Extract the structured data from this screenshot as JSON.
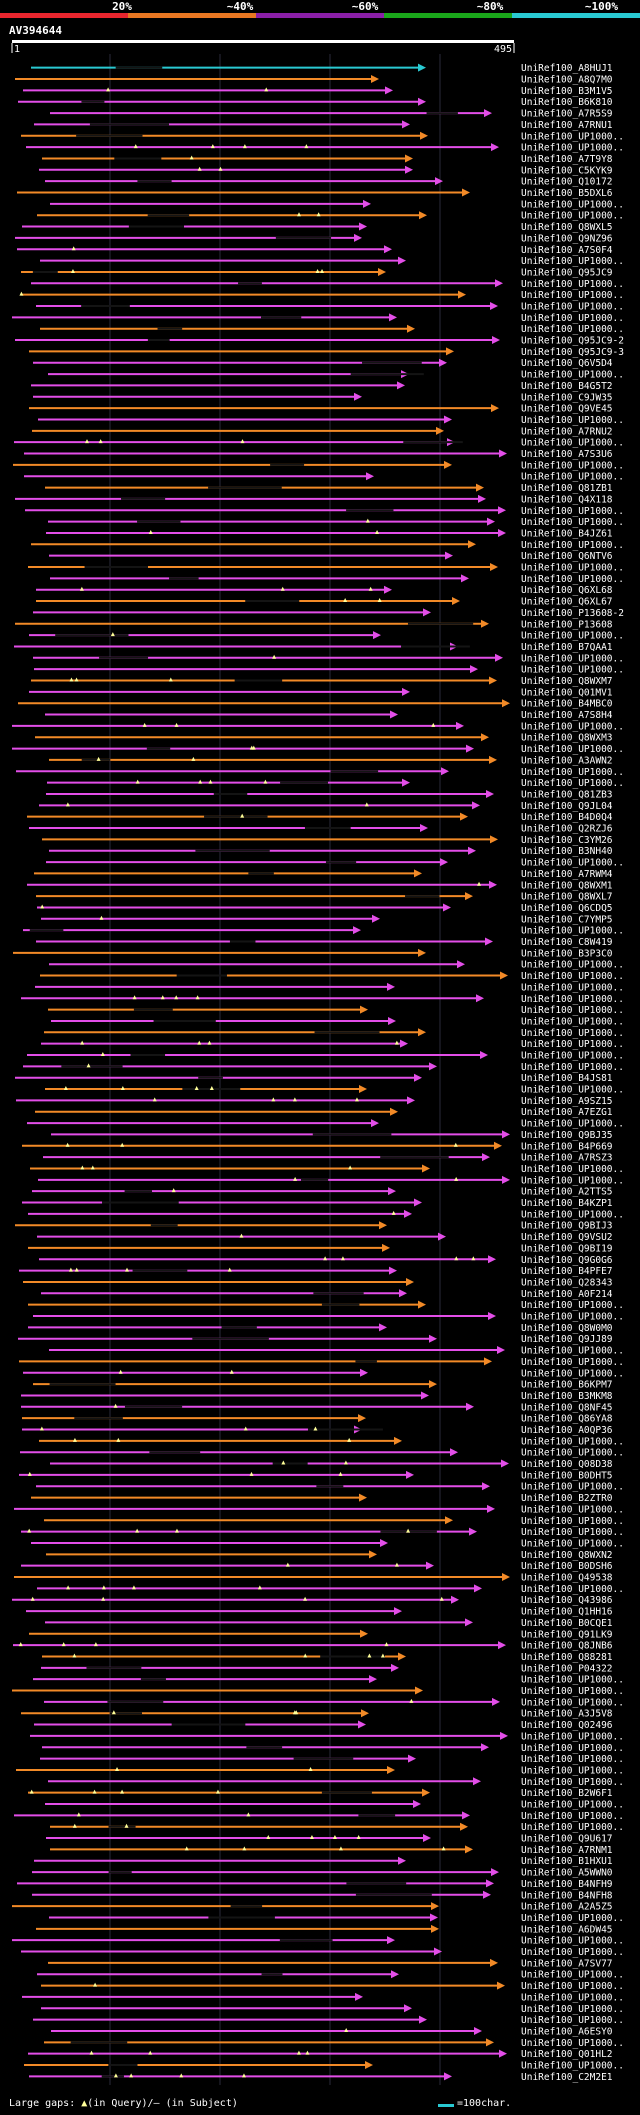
{
  "legend": {
    "ticks": [
      "20%",
      "~40%",
      "~60%",
      "~80%",
      "~100%"
    ],
    "colors": [
      "#e8262e",
      "#e87722",
      "#8b1fa8",
      "#1aa61a",
      "#29c9d2"
    ]
  },
  "query": {
    "name": "AV394644",
    "start": "1",
    "end": "495"
  },
  "footer": {
    "gaps_text": "Large gaps:",
    "in_query": "(in Query)",
    "in_subject": "(in Subject)",
    "scale_text": "=100char."
  },
  "palette": {
    "magenta": "#e34ee8",
    "orange": "#f28a27",
    "cyan": "#29c9d2",
    "marker": "#ffff99",
    "label": "#ffffff"
  },
  "hits": [
    "UniRef100_A8HUJ1",
    "UniRef100_A8Q7M0",
    "UniRef100_B3M1V5",
    "UniRef100_B6K810",
    "UniRef100_A7R5S9",
    "UniRef100_A7RNU1",
    "UniRef100_UP1000..",
    "UniRef100_UP1000..",
    "UniRef100_A7T9Y8",
    "UniRef100_C5KYK9",
    "UniRef100_Q10172",
    "UniRef100_B5DXL6",
    "UniRef100_UP1000..",
    "UniRef100_UP1000..",
    "UniRef100_Q8WXL5",
    "UniRef100_Q9NZ96",
    "UniRef100_A7S0F4",
    "UniRef100_UP1000..",
    "UniRef100_Q95JC9",
    "UniRef100_UP1000..",
    "UniRef100_UP1000..",
    "UniRef100_UP1000..",
    "UniRef100_UP1000..",
    "UniRef100_UP1000..",
    "UniRef100_Q95JC9-2",
    "UniRef100_Q95JC9-3",
    "UniRef100_Q6V5D4",
    "UniRef100_UP1000..",
    "UniRef100_B4G5T2",
    "UniRef100_C9JW35",
    "UniRef100_Q9VE45",
    "UniRef100_UP1000..",
    "UniRef100_A7RNU2",
    "UniRef100_UP1000..",
    "UniRef100_A7S3U6",
    "UniRef100_UP1000..",
    "UniRef100_UP1000..",
    "UniRef100_Q81ZB1",
    "UniRef100_Q4X118",
    "UniRef100_UP1000..",
    "UniRef100_UP1000..",
    "UniRef100_B4JZ61",
    "UniRef100_UP1000..",
    "UniRef100_Q6NTV6",
    "UniRef100_UP1000..",
    "UniRef100_UP1000..",
    "UniRef100_Q6XL68",
    "UniRef100_Q6XL67",
    "UniRef100_P13608-2",
    "UniRef100_P13608",
    "UniRef100_UP1000..",
    "UniRef100_B7QAA1",
    "UniRef100_UP1000..",
    "UniRef100_UP1000..",
    "UniRef100_Q8WXM7",
    "UniRef100_Q01MV1",
    "UniRef100_B4MBC0",
    "UniRef100_A7S8H4",
    "UniRef100_UP1000..",
    "UniRef100_Q8WXM3",
    "UniRef100_UP1000..",
    "UniRef100_A3AWN2",
    "UniRef100_UP1000..",
    "UniRef100_UP1000..",
    "UniRef100_Q81ZB3",
    "UniRef100_Q9JL04",
    "UniRef100_B4D0Q4",
    "UniRef100_Q2RZJ6",
    "UniRef100_C3YM26",
    "UniRef100_B3NH40",
    "UniRef100_UP1000..",
    "UniRef100_A7RWM4",
    "UniRef100_Q8WXM1",
    "UniRef100_Q8WXL7",
    "UniRef100_Q6CDQ5",
    "UniRef100_C7YMP5",
    "UniRef100_UP1000..",
    "UniRef100_C8W419",
    "UniRef100_B3P3C0",
    "UniRef100_UP1000..",
    "UniRef100_UP1000..",
    "UniRef100_UP1000..",
    "UniRef100_UP1000..",
    "UniRef100_UP1000..",
    "UniRef100_UP1000..",
    "UniRef100_UP1000..",
    "UniRef100_UP1000..",
    "UniRef100_UP1000..",
    "UniRef100_UP1000..",
    "UniRef100_B4JS81",
    "UniRef100_UP1000..",
    "UniRef100_A9SZ15",
    "UniRef100_A7EZG1",
    "UniRef100_UP1000..",
    "UniRef100_Q9BJ35",
    "UniRef100_B4P669",
    "UniRef100_A7RSZ3",
    "UniRef100_UP1000..",
    "UniRef100_UP1000..",
    "UniRef100_A2TTS5",
    "UniRef100_B4KZP1",
    "UniRef100_UP1000..",
    "UniRef100_Q9BIJ3",
    "UniRef100_Q9VSU2",
    "UniRef100_Q9BI19",
    "UniRef100_Q9G0G6",
    "UniRef100_B4PFE7",
    "UniRef100_Q28343",
    "UniRef100_A0F214",
    "UniRef100_UP1000..",
    "UniRef100_UP1000..",
    "UniRef100_Q8W0M0",
    "UniRef100_Q9JJ89",
    "UniRef100_UP1000..",
    "UniRef100_UP1000..",
    "UniRef100_UP1000..",
    "UniRef100_B6KPM7",
    "UniRef100_B3MKM8",
    "UniRef100_Q8NF45",
    "UniRef100_Q86YA8",
    "UniRef100_A0QP36",
    "UniRef100_UP1000..",
    "UniRef100_UP1000..",
    "UniRef100_Q08D38",
    "UniRef100_B0DHT5",
    "UniRef100_UP1000..",
    "UniRef100_B2ZTR0",
    "UniRef100_UP1000..",
    "UniRef100_UP1000..",
    "UniRef100_UP1000..",
    "UniRef100_UP1000..",
    "UniRef100_Q8WXN2",
    "UniRef100_B0DSH6",
    "UniRef100_Q49538",
    "UniRef100_UP1000..",
    "UniRef100_Q43986",
    "UniRef100_Q1HH16",
    "UniRef100_B0CQE1",
    "UniRef100_Q91LK9",
    "UniRef100_Q8JNB6",
    "UniRef100_Q88281",
    "UniRef100_P04322",
    "UniRef100_UP1000..",
    "UniRef100_UP1000..",
    "UniRef100_UP1000..",
    "UniRef100_A3J5V8",
    "UniRef100_Q02496",
    "UniRef100_UP1000..",
    "UniRef100_UP1000..",
    "UniRef100_UP1000..",
    "UniRef100_UP1000..",
    "UniRef100_UP1000..",
    "UniRef100_B2W6F1",
    "UniRef100_UP1000..",
    "UniRef100_UP1000..",
    "UniRef100_UP1000..",
    "UniRef100_Q9U617",
    "UniRef100_A7RNM1",
    "UniRef100_B1HXU1",
    "UniRef100_A5WWN0",
    "UniRef100_B4NFH9",
    "UniRef100_B4NFH8",
    "UniRef100_A2A5Z5",
    "UniRef100_UP1000..",
    "UniRef100_A6DW45",
    "UniRef100_UP1000..",
    "UniRef100_UP1000..",
    "UniRef100_A7SV77",
    "UniRef100_UP1000..",
    "UniRef100_UP1000..",
    "UniRef100_UP1000..",
    "UniRef100_UP1000..",
    "UniRef100_UP1000..",
    "UniRef100_A6ESY0",
    "UniRef100_UP1000..",
    "UniRef100_Q01HL2",
    "UniRef100_UP1000..",
    "UniRef100_C2M2E1"
  ]
}
